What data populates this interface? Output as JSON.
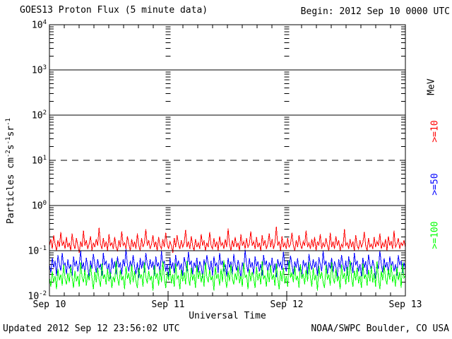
{
  "title": "GOES13 Proton Flux (5 minute data)",
  "begin_label": "Begin: 2012 Sep 10 0000 UTC",
  "footer": {
    "updated": "Updated 2012 Sep 12 23:56:02 UTC",
    "source": "NOAA/SWPC Boulder, CO USA"
  },
  "colors": {
    "red": "#ff0000",
    "blue": "#0000ff",
    "green": "#00ff00",
    "axis": "#000000",
    "background": "#ffffff"
  },
  "y_axis": {
    "exponents": [
      4,
      3,
      2,
      1,
      0,
      -1,
      -2
    ],
    "label_parts": [
      {
        "t": "Particles cm"
      },
      {
        "t": "-2",
        "sup": true
      },
      {
        "t": "s"
      },
      {
        "t": "-1",
        "sup": true
      },
      {
        "t": "sr"
      },
      {
        "t": "-1",
        "sup": true
      }
    ],
    "unit_label": "MeV"
  },
  "x_axis": {
    "title": "Universal Time",
    "tick_labels": [
      "Sep 10",
      "Sep 11",
      "Sep 12",
      "Sep 13"
    ]
  },
  "legend": [
    {
      "label": ">=10",
      "color": "#ff0000"
    },
    {
      "label": ">=50",
      "color": "#0000ff"
    },
    {
      "label": ">=100",
      "color": "#00ff00"
    }
  ],
  "chart_data": {
    "type": "line",
    "title": "GOES13 Proton Flux (5 minute data)",
    "xlabel": "Universal Time",
    "ylabel": "Particles cm-2 s-1 sr-1",
    "x_start": "2012 Sep 10 0000 UTC",
    "x_end": "2012 Sep 13 0000 UTC",
    "x_tick_labels": [
      "Sep 10",
      "Sep 11",
      "Sep 12",
      "Sep 13"
    ],
    "y_scale": "log",
    "ylim_log10": [
      -2,
      4
    ],
    "gridlines": {
      "solid_log10": [
        3,
        2,
        0,
        -1
      ],
      "dashed_log10": [
        1
      ]
    },
    "legend_position": "right-rotated",
    "points_per_series": 252,
    "series": [
      {
        "name": ">=10 MeV",
        "color": "#ff0000",
        "values": [
          0.13,
          0.18,
          0.11,
          0.22,
          0.14,
          0.1,
          0.17,
          0.12,
          0.26,
          0.13,
          0.16,
          0.11,
          0.2,
          0.12,
          0.15,
          0.1,
          0.24,
          0.14,
          0.11,
          0.19,
          0.13,
          0.09,
          0.16,
          0.12,
          0.28,
          0.13,
          0.17,
          0.11,
          0.14,
          0.21,
          0.1,
          0.15,
          0.12,
          0.18,
          0.13,
          0.32,
          0.14,
          0.11,
          0.19,
          0.12,
          0.16,
          0.1,
          0.23,
          0.13,
          0.15,
          0.11,
          0.2,
          0.12,
          0.1,
          0.17,
          0.12,
          0.27,
          0.13,
          0.15,
          0.11,
          0.21,
          0.14,
          0.1,
          0.18,
          0.12,
          0.16,
          0.11,
          0.24,
          0.13,
          0.1,
          0.19,
          0.12,
          0.15,
          0.3,
          0.13,
          0.17,
          0.11,
          0.14,
          0.22,
          0.12,
          0.16,
          0.1,
          0.2,
          0.13,
          0.11,
          0.18,
          0.12,
          0.25,
          0.14,
          0.11,
          0.16,
          0.13,
          0.09,
          0.19,
          0.12,
          0.22,
          0.14,
          0.11,
          0.17,
          0.12,
          0.15,
          0.29,
          0.12,
          0.16,
          0.11,
          0.21,
          0.13,
          0.1,
          0.18,
          0.12,
          0.15,
          0.11,
          0.23,
          0.13,
          0.17,
          0.1,
          0.15,
          0.12,
          0.26,
          0.13,
          0.11,
          0.19,
          0.12,
          0.16,
          0.1,
          0.21,
          0.13,
          0.15,
          0.11,
          0.18,
          0.12,
          0.31,
          0.14,
          0.1,
          0.17,
          0.12,
          0.2,
          0.12,
          0.15,
          0.1,
          0.23,
          0.13,
          0.16,
          0.11,
          0.19,
          0.12,
          0.14,
          0.27,
          0.13,
          0.16,
          0.11,
          0.2,
          0.12,
          0.15,
          0.1,
          0.22,
          0.13,
          0.17,
          0.11,
          0.14,
          0.24,
          0.12,
          0.18,
          0.11,
          0.15,
          0.34,
          0.13,
          0.16,
          0.1,
          0.21,
          0.12,
          0.15,
          0.11,
          0.19,
          0.12,
          0.14,
          0.25,
          0.13,
          0.1,
          0.17,
          0.12,
          0.22,
          0.14,
          0.11,
          0.16,
          0.13,
          0.28,
          0.12,
          0.15,
          0.11,
          0.18,
          0.12,
          0.2,
          0.1,
          0.16,
          0.13,
          0.23,
          0.11,
          0.15,
          0.12,
          0.19,
          0.13,
          0.1,
          0.25,
          0.12,
          0.16,
          0.11,
          0.21,
          0.13,
          0.17,
          0.1,
          0.14,
          0.12,
          0.3,
          0.13,
          0.15,
          0.11,
          0.18,
          0.12,
          0.16,
          0.1,
          0.22,
          0.13,
          0.11,
          0.17,
          0.12,
          0.15,
          0.26,
          0.13,
          0.1,
          0.19,
          0.12,
          0.14,
          0.11,
          0.2,
          0.12,
          0.16,
          0.13,
          0.24,
          0.11,
          0.15,
          0.12,
          0.18,
          0.1,
          0.21,
          0.13,
          0.16,
          0.11,
          0.28,
          0.12,
          0.14,
          0.19,
          0.11,
          0.15,
          0.13,
          0.17,
          0.12
        ]
      },
      {
        "name": ">=50 MeV",
        "color": "#0000ff",
        "values": [
          0.05,
          0.032,
          0.07,
          0.042,
          0.06,
          0.028,
          0.08,
          0.05,
          0.036,
          0.09,
          0.045,
          0.055,
          0.03,
          0.065,
          0.04,
          0.05,
          0.026,
          0.075,
          0.045,
          0.06,
          0.035,
          0.05,
          0.1,
          0.04,
          0.055,
          0.03,
          0.07,
          0.045,
          0.025,
          0.06,
          0.04,
          0.085,
          0.05,
          0.033,
          0.065,
          0.042,
          0.05,
          0.028,
          0.09,
          0.048,
          0.06,
          0.035,
          0.052,
          0.024,
          0.07,
          0.04,
          0.058,
          0.03,
          0.075,
          0.042,
          0.055,
          0.03,
          0.065,
          0.045,
          0.11,
          0.05,
          0.035,
          0.06,
          0.04,
          0.08,
          0.045,
          0.03,
          0.055,
          0.025,
          0.07,
          0.04,
          0.06,
          0.033,
          0.09,
          0.05,
          0.038,
          0.065,
          0.042,
          0.058,
          0.028,
          0.075,
          0.045,
          0.055,
          0.03,
          0.1,
          0.048,
          0.06,
          0.035,
          0.05,
          0.026,
          0.068,
          0.04,
          0.055,
          0.032,
          0.08,
          0.045,
          0.06,
          0.038,
          0.052,
          0.028,
          0.072,
          0.05,
          0.035,
          0.095,
          0.048,
          0.06,
          0.03,
          0.055,
          0.042,
          0.07,
          0.033,
          0.058,
          0.045,
          0.025,
          0.065,
          0.04,
          0.08,
          0.05,
          0.035,
          0.06,
          0.028,
          0.075,
          0.045,
          0.055,
          0.032,
          0.09,
          0.048,
          0.06,
          0.035,
          0.05,
          0.027,
          0.07,
          0.042,
          0.058,
          0.03,
          0.085,
          0.05,
          0.036,
          0.062,
          0.045,
          0.024,
          0.055,
          0.04,
          0.105,
          0.05,
          0.033,
          0.068,
          0.042,
          0.056,
          0.03,
          0.075,
          0.045,
          0.058,
          0.035,
          0.05,
          0.028,
          0.08,
          0.048,
          0.06,
          0.032,
          0.055,
          0.04,
          0.07,
          0.033,
          0.052,
          0.026,
          0.065,
          0.045,
          0.055,
          0.038,
          0.095,
          0.05,
          0.035,
          0.06,
          0.04,
          0.078,
          0.048,
          0.03,
          0.058,
          0.042,
          0.068,
          0.035,
          0.05,
          0.027,
          0.062,
          0.045,
          0.055,
          0.03,
          0.085,
          0.05,
          0.038,
          0.065,
          0.042,
          0.058,
          0.028,
          0.072,
          0.05,
          0.035,
          0.1,
          0.048,
          0.06,
          0.03,
          0.055,
          0.04,
          0.07,
          0.033,
          0.058,
          0.045,
          0.025,
          0.065,
          0.04,
          0.08,
          0.05,
          0.035,
          0.06,
          0.028,
          0.075,
          0.045,
          0.055,
          0.032,
          0.09,
          0.048,
          0.06,
          0.035,
          0.05,
          0.027,
          0.07,
          0.042,
          0.058,
          0.03,
          0.082,
          0.05,
          0.036,
          0.062,
          0.045,
          0.024,
          0.055,
          0.04,
          0.1,
          0.05,
          0.033,
          0.068,
          0.042,
          0.056,
          0.03,
          0.075,
          0.045,
          0.058,
          0.035,
          0.05,
          0.028,
          0.08,
          0.048,
          0.06,
          0.032,
          0.055,
          0.04
        ]
      },
      {
        "name": ">=100 MeV",
        "color": "#00ff00",
        "values": [
          0.025,
          0.016,
          0.035,
          0.02,
          0.028,
          0.014,
          0.04,
          0.022,
          0.03,
          0.017,
          0.05,
          0.024,
          0.018,
          0.032,
          0.02,
          0.045,
          0.025,
          0.015,
          0.036,
          0.021,
          0.028,
          0.016,
          0.055,
          0.026,
          0.02,
          0.038,
          0.017,
          0.03,
          0.022,
          0.048,
          0.025,
          0.014,
          0.034,
          0.02,
          0.042,
          0.023,
          0.016,
          0.052,
          0.024,
          0.03,
          0.018,
          0.04,
          0.021,
          0.033,
          0.015,
          0.027,
          0.02,
          0.06,
          0.025,
          0.017,
          0.038,
          0.022,
          0.028,
          0.014,
          0.045,
          0.024,
          0.032,
          0.018,
          0.05,
          0.02,
          0.035,
          0.021,
          0.015,
          0.042,
          0.025,
          0.03,
          0.016,
          0.055,
          0.026,
          0.019,
          0.036,
          0.022,
          0.028,
          0.013,
          0.048,
          0.024,
          0.032,
          0.017,
          0.04,
          0.02,
          0.058,
          0.025,
          0.015,
          0.034,
          0.022,
          0.045,
          0.019,
          0.03,
          0.016,
          0.052,
          0.024,
          0.028,
          0.014,
          0.038,
          0.021,
          0.033,
          0.018,
          0.06,
          0.025,
          0.017,
          0.042,
          0.022,
          0.03,
          0.015,
          0.048,
          0.024,
          0.036,
          0.02,
          0.032,
          0.016,
          0.055,
          0.026,
          0.02,
          0.038,
          0.022,
          0.028,
          0.013,
          0.045,
          0.024,
          0.031,
          0.017,
          0.04,
          0.02,
          0.062,
          0.025,
          0.015,
          0.035,
          0.021,
          0.05,
          0.024,
          0.018,
          0.032,
          0.022,
          0.046,
          0.019,
          0.028,
          0.016,
          0.054,
          0.025,
          0.03,
          0.014,
          0.04,
          0.021,
          0.034,
          0.025,
          0.015,
          0.044,
          0.022,
          0.032,
          0.018,
          0.058,
          0.024,
          0.028,
          0.016,
          0.038,
          0.02,
          0.048,
          0.023,
          0.03,
          0.017,
          0.052,
          0.025,
          0.014,
          0.036,
          0.021,
          0.042,
          0.019,
          0.028,
          0.016,
          0.06,
          0.025,
          0.033,
          0.02,
          0.045,
          0.022,
          0.028,
          0.015,
          0.05,
          0.024,
          0.031,
          0.018,
          0.038,
          0.021,
          0.055,
          0.026,
          0.016,
          0.042,
          0.022,
          0.03,
          0.013,
          0.046,
          0.024,
          0.034,
          0.02,
          0.015,
          0.048,
          0.023,
          0.03,
          0.017,
          0.056,
          0.025,
          0.019,
          0.04,
          0.021,
          0.028,
          0.014,
          0.05,
          0.024,
          0.032,
          0.018,
          0.044,
          0.02,
          0.06,
          0.026,
          0.016,
          0.036,
          0.022,
          0.042,
          0.019,
          0.028,
          0.015,
          0.052,
          0.024,
          0.03,
          0.017,
          0.038,
          0.021,
          0.045,
          0.02,
          0.032,
          0.016,
          0.058,
          0.025,
          0.014,
          0.036,
          0.022,
          0.048,
          0.024,
          0.018,
          0.04,
          0.023,
          0.05,
          0.02,
          0.03,
          0.016,
          0.044,
          0.022,
          0.034,
          0.015,
          0.055,
          0.025,
          0.028
        ]
      }
    ]
  }
}
